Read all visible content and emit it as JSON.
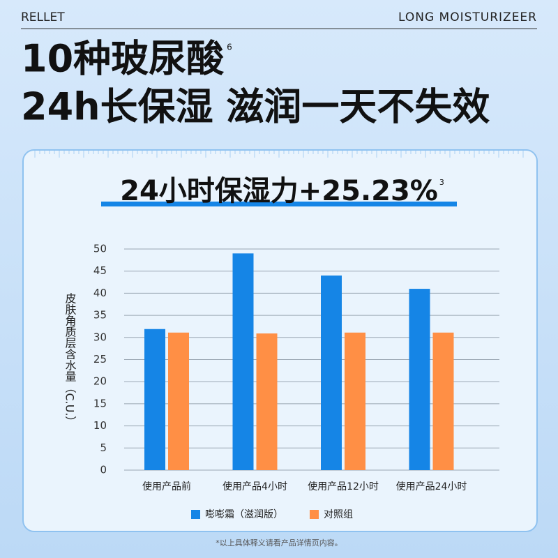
{
  "header": {
    "brand": "RELLET",
    "tagline": "LONG MOISTURIZEER"
  },
  "headline": {
    "line1": "10种玻尿酸",
    "note": "6",
    "line2": "24h长保湿 滋润一天不失效"
  },
  "chart_data": {
    "type": "bar",
    "title": "24小时保湿力+25.23%",
    "title_note": "3",
    "y_label": "皮肤角质层含水量（C.U.）",
    "categories": [
      "使用产品前",
      "使用产品4小时",
      "使用产品12小时",
      "使用产品24小时"
    ],
    "series": [
      {
        "name": "嘭嘭霜（滋润版）",
        "color": "#1585e6",
        "values": [
          31.9,
          49.0,
          44.0,
          41.0
        ]
      },
      {
        "name": "对照组",
        "color": "#ff8f45",
        "values": [
          31.1,
          30.9,
          31.1,
          31.1
        ]
      }
    ],
    "ylim": [
      0,
      50
    ],
    "yticks": [
      0,
      5,
      10,
      15,
      20,
      25,
      30,
      35,
      40,
      45,
      50
    ],
    "grid": true
  },
  "footnote": "*以上具体释义请看产品详情页内容。"
}
